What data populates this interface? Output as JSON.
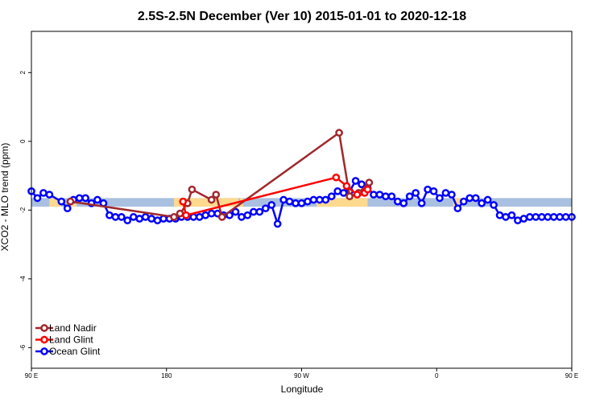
{
  "chart_data": {
    "type": "line",
    "title": "2.5S-2.5N December (Ver 10)   2015-01-01 to 2020-12-18",
    "xlabel": "Longitude",
    "ylabel": "XCO2 - MLO trend (ppm)",
    "xlim": [
      -180,
      180
    ],
    "ylim": [
      -6.6,
      3.2
    ],
    "x_ticks": [
      {
        "value": -180,
        "label": "90 E"
      },
      {
        "value": -90,
        "label": "180"
      },
      {
        "value": 0,
        "label": "90 W"
      },
      {
        "value": 90,
        "label": "0"
      },
      {
        "value": 180,
        "label": "90 E"
      },
      {
        "value": 270,
        "label": "180"
      }
    ],
    "y_ticks": [
      {
        "value": 2,
        "label": "2"
      },
      {
        "value": 0,
        "label": "0"
      },
      {
        "value": -2,
        "label": "-2"
      },
      {
        "value": -4,
        "label": "-4"
      },
      {
        "value": -6,
        "label": "-6"
      }
    ],
    "background_band": {
      "y_range": [
        -1.9,
        -1.65
      ],
      "ocean_color": "#a9c0e0",
      "land_color": "#fed98e",
      "land_segments": [
        [
          -168,
          -160
        ],
        [
          -155,
          -150
        ],
        [
          -85,
          -42
        ],
        [
          -41,
          -39
        ],
        [
          10,
          44
        ],
        [
          101,
          107
        ]
      ]
    },
    "legend": {
      "position": "bottom-left"
    },
    "series": [
      {
        "name": "Land Nadir",
        "color": "#a0282d",
        "x": [
          -154,
          -85,
          -81,
          -76,
          -73,
          -60,
          -57,
          -53,
          25,
          32,
          38,
          45
        ],
        "y": [
          -1.75,
          -2.2,
          -2.1,
          -1.8,
          -1.4,
          -1.7,
          -1.55,
          -2.2,
          0.25,
          -1.6,
          -1.5,
          -1.2
        ]
      },
      {
        "name": "Land Glint",
        "color": "#ff0000",
        "x": [
          -79,
          -77,
          23,
          30,
          37,
          42,
          44
        ],
        "y": [
          -1.75,
          -2.15,
          -1.05,
          -1.3,
          -1.55,
          -1.5,
          -1.4
        ]
      },
      {
        "name": "Ocean Glint",
        "color": "#0000ff",
        "x": [
          -180,
          -176,
          -172,
          -168,
          -160,
          -156,
          -152,
          -148,
          -144,
          -140,
          -136,
          -132,
          -128,
          -124,
          -120,
          -116,
          -112,
          -108,
          -104,
          -100,
          -96,
          -92,
          -88,
          -84,
          -80,
          -76,
          -72,
          -68,
          -64,
          -60,
          -56,
          -52,
          -48,
          -44,
          -40,
          -36,
          -32,
          -28,
          -24,
          -20,
          -16,
          -12,
          -8,
          -4,
          0,
          4,
          8,
          12,
          16,
          20,
          24,
          28,
          32,
          36,
          40,
          44,
          48,
          52,
          56,
          60,
          64,
          68,
          72,
          76,
          80,
          84,
          88,
          92,
          96,
          100,
          104,
          108,
          112,
          116,
          120,
          124,
          128,
          132,
          136,
          140,
          144,
          148,
          152,
          156,
          160,
          164,
          168,
          172,
          176,
          180
        ],
        "y": [
          -1.45,
          -1.65,
          -1.5,
          -1.55,
          -1.75,
          -1.95,
          -1.7,
          -1.65,
          -1.65,
          -1.8,
          -1.7,
          -1.8,
          -2.15,
          -2.2,
          -2.2,
          -2.3,
          -2.2,
          -2.25,
          -2.2,
          -2.25,
          -2.3,
          -2.25,
          -2.25,
          -2.25,
          -2.2,
          -2.2,
          -2.2,
          -2.2,
          -2.15,
          -2.1,
          -2.1,
          -2.15,
          -2.15,
          -2.05,
          -2.2,
          -2.15,
          -2.05,
          -2.05,
          -1.95,
          -1.85,
          -2.4,
          -1.7,
          -1.75,
          -1.8,
          -1.8,
          -1.75,
          -1.7,
          -1.7,
          -1.7,
          -1.6,
          -1.45,
          -1.5,
          -1.45,
          -1.15,
          -1.25,
          -1.35,
          -1.55,
          -1.55,
          -1.6,
          -1.6,
          -1.75,
          -1.8,
          -1.6,
          -1.5,
          -1.8,
          -1.4,
          -1.45,
          -1.65,
          -1.5,
          -1.55,
          -1.95,
          -1.75,
          -1.65,
          -1.65,
          -1.8,
          -1.7,
          -1.85,
          -2.15,
          -2.2,
          -2.15,
          -2.3,
          -2.25,
          -2.2,
          -2.2,
          -2.2,
          -2.2,
          -2.2,
          -2.2,
          -2.2,
          -2.2
        ]
      }
    ]
  }
}
